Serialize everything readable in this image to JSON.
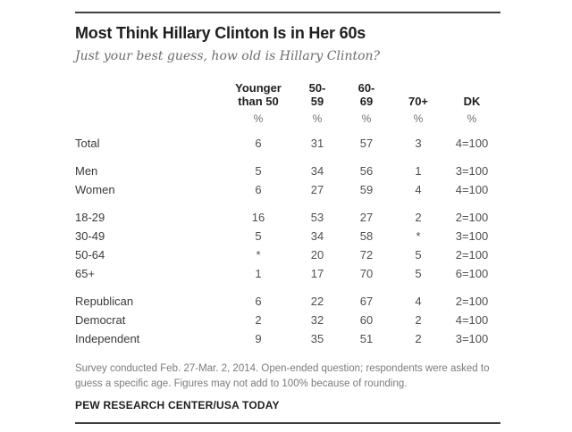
{
  "header": {
    "title": "Most Think Hillary Clinton Is in Her 60s",
    "subtitle": "Just your best guess, how old is Hillary Clinton?"
  },
  "chart_data": {
    "type": "table",
    "title": "Most Think Hillary Clinton Is in Her 60s",
    "subtitle": "Just your best guess, how old is Hillary Clinton?",
    "unit": "%",
    "columns": [
      {
        "name": "Younger than 50",
        "display": "Younger\nthan 50"
      },
      {
        "name": "50-59",
        "display": "50-\n59"
      },
      {
        "name": "60-69",
        "display": "60-\n69"
      },
      {
        "name": "70+",
        "display": "70+"
      },
      {
        "name": "DK",
        "display": "DK"
      }
    ],
    "unit_row": [
      "%",
      "%",
      "%",
      "%",
      "%"
    ],
    "groups": [
      {
        "rows": [
          {
            "label": "Total",
            "values": [
              "6",
              "31",
              "57",
              "3",
              "4=100"
            ]
          }
        ]
      },
      {
        "rows": [
          {
            "label": "Men",
            "values": [
              "5",
              "34",
              "56",
              "1",
              "3=100"
            ]
          },
          {
            "label": "Women",
            "values": [
              "6",
              "27",
              "59",
              "4",
              "4=100"
            ]
          }
        ]
      },
      {
        "rows": [
          {
            "label": "18-29",
            "values": [
              "16",
              "53",
              "27",
              "2",
              "2=100"
            ]
          },
          {
            "label": "30-49",
            "values": [
              "5",
              "34",
              "58",
              "*",
              "3=100"
            ]
          },
          {
            "label": "50-64",
            "values": [
              "*",
              "20",
              "72",
              "5",
              "2=100"
            ]
          },
          {
            "label": "65+",
            "values": [
              "1",
              "17",
              "70",
              "5",
              "6=100"
            ]
          }
        ]
      },
      {
        "rows": [
          {
            "label": "Republican",
            "values": [
              "6",
              "22",
              "67",
              "4",
              "2=100"
            ]
          },
          {
            "label": "Democrat",
            "values": [
              "2",
              "32",
              "60",
              "2",
              "4=100"
            ]
          },
          {
            "label": "Independent",
            "values": [
              "9",
              "35",
              "51",
              "2",
              "3=100"
            ]
          }
        ]
      }
    ],
    "notes": [
      "Survey conducted Feb. 27-Mar. 2, 2014. Open-ended question; respondents were asked to",
      "guess a specific age. Figures may not add to 100% because of rounding."
    ],
    "source": "PEW RESEARCH CENTER/USA TODAY"
  },
  "colors": {
    "rule": "#3f3f3f",
    "text_primary": "#1e1e1e",
    "text_value": "#4f4f4f",
    "text_muted": "#6d6d6d",
    "text_note": "#7b7b7b",
    "background": "#ffffff"
  }
}
